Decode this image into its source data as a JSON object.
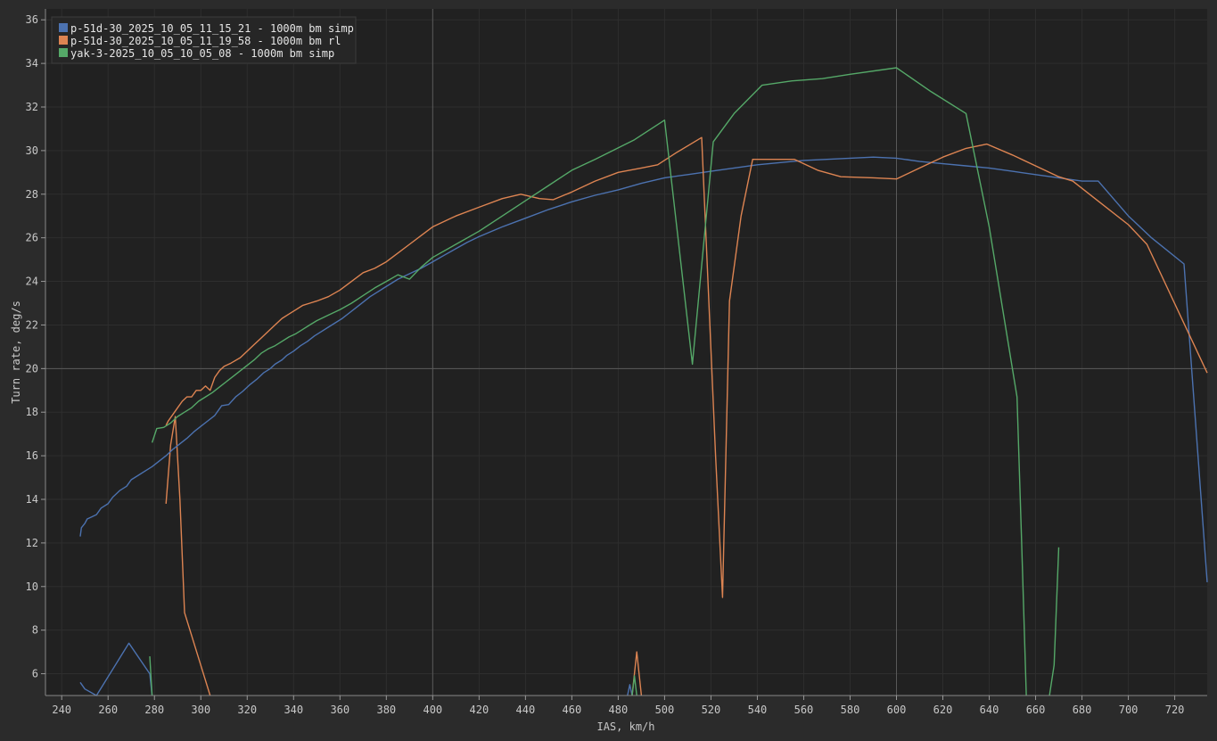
{
  "chart_data": {
    "type": "line",
    "xlabel": "IAS, km/h",
    "ylabel": "Turn rate, deg/s",
    "xlim": [
      233,
      734
    ],
    "ylim": [
      5,
      36.5
    ],
    "x_ticks": [
      240,
      260,
      280,
      300,
      320,
      340,
      360,
      380,
      400,
      420,
      440,
      460,
      480,
      500,
      520,
      540,
      560,
      580,
      600,
      620,
      640,
      660,
      680,
      700,
      720
    ],
    "y_ticks": [
      6,
      8,
      10,
      12,
      14,
      16,
      18,
      20,
      22,
      24,
      26,
      28,
      30,
      32,
      34,
      36
    ],
    "crosshair": {
      "x": 400,
      "x2": 600,
      "y": 20
    },
    "grid": true,
    "legend_position": "top-left",
    "series": [
      {
        "name": "p-51d-30_2025_10_05_11_15_21 - 1000m bm simp",
        "color": "#4c72b0",
        "points": [
          [
            248,
            12.3
          ],
          [
            248.5,
            12.7
          ],
          [
            250,
            12.9
          ],
          [
            251,
            13.1
          ],
          [
            253,
            13.2
          ],
          [
            255,
            13.3
          ],
          [
            257,
            13.6
          ],
          [
            260,
            13.8
          ],
          [
            262,
            14.1
          ],
          [
            265,
            14.4
          ],
          [
            268,
            14.6
          ],
          [
            270,
            14.9
          ],
          [
            273,
            15.1
          ],
          [
            276,
            15.3
          ],
          [
            279,
            15.5
          ],
          [
            282,
            15.75
          ],
          [
            285,
            16.0
          ],
          [
            288,
            16.3
          ],
          [
            291,
            16.55
          ],
          [
            294,
            16.8
          ],
          [
            297,
            17.1
          ],
          [
            300,
            17.35
          ],
          [
            303,
            17.6
          ],
          [
            306,
            17.85
          ],
          [
            309,
            18.3
          ],
          [
            312,
            18.35
          ],
          [
            315,
            18.7
          ],
          [
            318,
            18.95
          ],
          [
            321,
            19.25
          ],
          [
            324,
            19.5
          ],
          [
            327,
            19.8
          ],
          [
            330,
            20.0
          ],
          [
            332,
            20.2
          ],
          [
            335,
            20.4
          ],
          [
            337,
            20.6
          ],
          [
            340,
            20.8
          ],
          [
            343,
            21.05
          ],
          [
            346,
            21.25
          ],
          [
            349,
            21.5
          ],
          [
            352,
            21.7
          ],
          [
            355,
            21.9
          ],
          [
            358,
            22.1
          ],
          [
            361,
            22.3
          ],
          [
            364,
            22.55
          ],
          [
            367,
            22.8
          ],
          [
            370,
            23.05
          ],
          [
            373,
            23.3
          ],
          [
            376,
            23.5
          ],
          [
            379,
            23.7
          ],
          [
            382,
            23.9
          ],
          [
            385,
            24.1
          ],
          [
            390,
            24.35
          ],
          [
            395,
            24.6
          ],
          [
            400,
            24.9
          ],
          [
            405,
            25.2
          ],
          [
            410,
            25.5
          ],
          [
            415,
            25.8
          ],
          [
            420,
            26.05
          ],
          [
            430,
            26.5
          ],
          [
            440,
            26.9
          ],
          [
            450,
            27.3
          ],
          [
            460,
            27.65
          ],
          [
            470,
            27.95
          ],
          [
            480,
            28.2
          ],
          [
            490,
            28.5
          ],
          [
            500,
            28.75
          ],
          [
            510,
            28.9
          ],
          [
            520,
            29.05
          ],
          [
            530,
            29.2
          ],
          [
            540,
            29.35
          ],
          [
            550,
            29.45
          ],
          [
            560,
            29.55
          ],
          [
            570,
            29.6
          ],
          [
            580,
            29.65
          ],
          [
            590,
            29.7
          ],
          [
            600,
            29.65
          ],
          [
            610,
            29.5
          ],
          [
            620,
            29.4
          ],
          [
            630,
            29.3
          ],
          [
            640,
            29.2
          ],
          [
            650,
            29.05
          ],
          [
            660,
            28.9
          ],
          [
            670,
            28.75
          ],
          [
            680,
            28.6
          ],
          [
            687,
            28.6
          ],
          [
            700,
            27.0
          ],
          [
            710,
            26.0
          ],
          [
            724,
            24.8
          ],
          [
            734,
            10.2
          ]
        ]
      },
      {
        "name": "p-51d-30_2025_10_05_11_19_58 - 1000m bm rl",
        "color": "#dd8452",
        "points": [
          [
            285,
            17.4
          ],
          [
            286,
            17.6
          ],
          [
            288,
            17.9
          ],
          [
            290,
            18.2
          ],
          [
            292,
            18.5
          ],
          [
            294,
            18.7
          ],
          [
            296,
            18.7
          ],
          [
            298,
            19.0
          ],
          [
            300,
            19.0
          ],
          [
            302,
            19.2
          ],
          [
            304,
            19.0
          ],
          [
            306,
            19.6
          ],
          [
            308,
            19.9
          ],
          [
            310,
            20.1
          ],
          [
            313,
            20.25
          ],
          [
            317,
            20.5
          ],
          [
            320,
            20.8
          ],
          [
            323,
            21.1
          ],
          [
            326,
            21.4
          ],
          [
            329,
            21.7
          ],
          [
            332,
            22.0
          ],
          [
            335,
            22.3
          ],
          [
            338,
            22.5
          ],
          [
            341,
            22.7
          ],
          [
            344,
            22.9
          ],
          [
            347,
            23.0
          ],
          [
            350,
            23.1
          ],
          [
            355,
            23.3
          ],
          [
            360,
            23.6
          ],
          [
            365,
            24.0
          ],
          [
            370,
            24.4
          ],
          [
            375,
            24.6
          ],
          [
            380,
            24.9
          ],
          [
            385,
            25.3
          ],
          [
            390,
            25.7
          ],
          [
            395,
            26.1
          ],
          [
            400,
            26.5
          ],
          [
            410,
            27.0
          ],
          [
            420,
            27.4
          ],
          [
            430,
            27.8
          ],
          [
            438,
            28.0
          ],
          [
            446,
            27.8
          ],
          [
            452,
            27.75
          ],
          [
            460,
            28.1
          ],
          [
            470,
            28.6
          ],
          [
            480,
            29.0
          ],
          [
            490,
            29.2
          ],
          [
            497,
            29.35
          ],
          [
            505,
            29.9
          ],
          [
            516,
            30.6
          ],
          [
            522,
            16.0
          ],
          [
            525,
            9.5
          ],
          [
            528,
            23.1
          ],
          [
            533,
            27.0
          ],
          [
            538,
            29.6
          ],
          [
            546,
            29.6
          ],
          [
            556,
            29.6
          ],
          [
            566,
            29.1
          ],
          [
            576,
            28.8
          ],
          [
            590,
            28.75
          ],
          [
            600,
            28.7
          ],
          [
            610,
            29.2
          ],
          [
            620,
            29.7
          ],
          [
            630,
            30.1
          ],
          [
            639,
            30.3
          ],
          [
            650,
            29.8
          ],
          [
            660,
            29.3
          ],
          [
            670,
            28.8
          ],
          [
            676,
            28.6
          ],
          [
            688,
            27.6
          ],
          [
            700,
            26.6
          ],
          [
            708,
            25.7
          ],
          [
            734,
            19.8
          ]
        ]
      },
      {
        "name": "yak-3-2025_10_05_10_05_08 - 1000m bm simp",
        "color": "#55a868",
        "points": [
          [
            279,
            16.6
          ],
          [
            281,
            17.25
          ],
          [
            284,
            17.3
          ],
          [
            287,
            17.5
          ],
          [
            290,
            17.8
          ],
          [
            293,
            18.0
          ],
          [
            296,
            18.2
          ],
          [
            299,
            18.5
          ],
          [
            302,
            18.7
          ],
          [
            305,
            18.9
          ],
          [
            308,
            19.15
          ],
          [
            311,
            19.4
          ],
          [
            314,
            19.65
          ],
          [
            317,
            19.9
          ],
          [
            320,
            20.15
          ],
          [
            323,
            20.4
          ],
          [
            326,
            20.7
          ],
          [
            329,
            20.9
          ],
          [
            332,
            21.05
          ],
          [
            335,
            21.25
          ],
          [
            338,
            21.45
          ],
          [
            341,
            21.6
          ],
          [
            344,
            21.8
          ],
          [
            347,
            22.0
          ],
          [
            350,
            22.2
          ],
          [
            355,
            22.45
          ],
          [
            360,
            22.7
          ],
          [
            365,
            23.0
          ],
          [
            370,
            23.35
          ],
          [
            375,
            23.7
          ],
          [
            380,
            24.0
          ],
          [
            385,
            24.3
          ],
          [
            390,
            24.1
          ],
          [
            395,
            24.65
          ],
          [
            400,
            25.1
          ],
          [
            410,
            25.7
          ],
          [
            420,
            26.3
          ],
          [
            430,
            27.0
          ],
          [
            440,
            27.7
          ],
          [
            450,
            28.4
          ],
          [
            460,
            29.1
          ],
          [
            470,
            29.6
          ],
          [
            487,
            30.5
          ],
          [
            500,
            31.4
          ],
          [
            512,
            20.2
          ],
          [
            521,
            30.4
          ],
          [
            530,
            31.7
          ],
          [
            542,
            33.0
          ],
          [
            555,
            33.2
          ],
          [
            568,
            33.3
          ],
          [
            580,
            33.5
          ],
          [
            600,
            33.8
          ],
          [
            615,
            32.7
          ],
          [
            630,
            31.7
          ],
          [
            640,
            26.5
          ],
          [
            652,
            18.7
          ],
          [
            654,
            12.0
          ],
          [
            656,
            5.0
          ]
        ]
      }
    ],
    "low_fragments": [
      {
        "series": 0,
        "points": [
          [
            248,
            5.6
          ],
          [
            250,
            5.3
          ],
          [
            255,
            4.8
          ],
          [
            269,
            7.4
          ],
          [
            278,
            6.0
          ],
          [
            279,
            5.0
          ]
        ]
      },
      {
        "series": 1,
        "points": [
          [
            285,
            13.8
          ],
          [
            287,
            16.5
          ],
          [
            289,
            17.8
          ],
          [
            291,
            14.0
          ],
          [
            293,
            8.8
          ],
          [
            304,
            5.0
          ]
        ]
      },
      {
        "series": 2,
        "points": [
          [
            278,
            6.8
          ],
          [
            279,
            5.0
          ]
        ]
      },
      {
        "series": 0,
        "points": [
          [
            484,
            5.0
          ],
          [
            485,
            5.5
          ],
          [
            486,
            5.0
          ]
        ]
      },
      {
        "series": 1,
        "points": [
          [
            486,
            5.0
          ],
          [
            488,
            7.0
          ],
          [
            490,
            5.0
          ]
        ]
      },
      {
        "series": 2,
        "points": [
          [
            486,
            5.0
          ],
          [
            487,
            5.9
          ],
          [
            488,
            5.0
          ]
        ]
      },
      {
        "series": 2,
        "points": [
          [
            666,
            5.0
          ],
          [
            668,
            6.4
          ],
          [
            670,
            11.8
          ]
        ]
      }
    ]
  }
}
